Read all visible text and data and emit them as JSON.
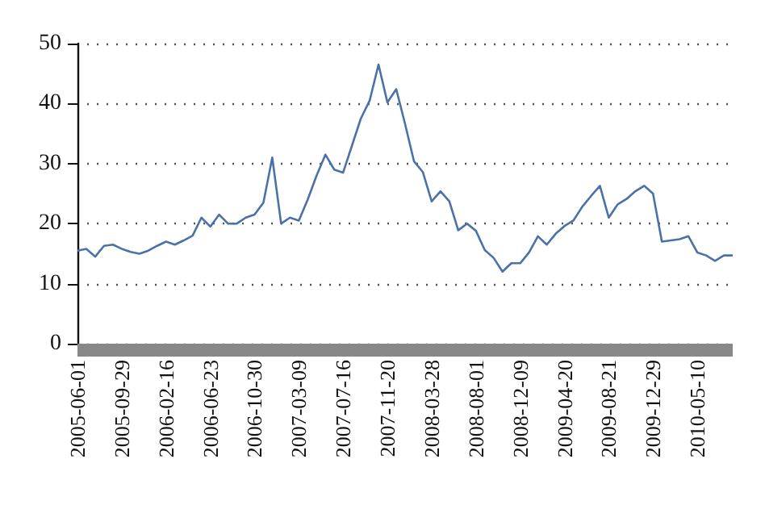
{
  "chart_data": {
    "type": "line",
    "categories": [
      "2005-06-01",
      null,
      null,
      null,
      null,
      "2005-09-29",
      null,
      null,
      null,
      null,
      "2006-02-16",
      null,
      null,
      null,
      null,
      "2006-06-23",
      null,
      null,
      null,
      null,
      "2006-10-30",
      null,
      null,
      null,
      null,
      "2007-03-09",
      null,
      null,
      null,
      null,
      "2007-07-16",
      null,
      null,
      null,
      null,
      "2007-11-20",
      null,
      null,
      null,
      null,
      "2008-03-28",
      null,
      null,
      null,
      null,
      "2008-08-01",
      null,
      null,
      null,
      null,
      "2008-12-09",
      null,
      null,
      null,
      null,
      "2009-04-20",
      null,
      null,
      null,
      null,
      "2009-08-21",
      null,
      null,
      null,
      null,
      "2009-12-29",
      null,
      null,
      null,
      null,
      "2010-05-10",
      null,
      null,
      null,
      null
    ],
    "series": [
      {
        "color": "#4a72a8",
        "values": [
          15.5,
          15.8,
          14.5,
          16.3,
          16.5,
          15.8,
          15.3,
          15,
          15.5,
          16.3,
          17,
          16.5,
          17.2,
          18,
          21,
          19.5,
          21.5,
          20,
          20,
          21,
          21.5,
          23.5,
          31,
          20,
          21,
          20.5,
          24,
          28,
          31.5,
          29,
          28.5,
          33,
          37.5,
          40.5,
          46.5,
          40.2,
          42.4,
          36.6,
          30.4,
          28.6,
          23.7,
          25.4,
          23.7,
          18.9,
          20,
          18.8,
          15.6,
          14.3,
          12,
          13.4,
          13.4,
          15.2,
          17.9,
          16.5,
          18.3,
          19.6,
          20.5,
          22.8,
          24.6,
          26.3,
          21,
          23.2,
          24.1,
          25.4,
          26.3,
          25,
          17,
          17.2,
          17.4,
          17.9,
          15.2,
          14.7,
          13.8,
          14.7,
          14.7
        ]
      }
    ],
    "ylim": [
      0,
      50
    ],
    "yticks": [
      0,
      10,
      20,
      30,
      40,
      50
    ],
    "grid": "y",
    "marker": "none",
    "line_style": "solid"
  }
}
